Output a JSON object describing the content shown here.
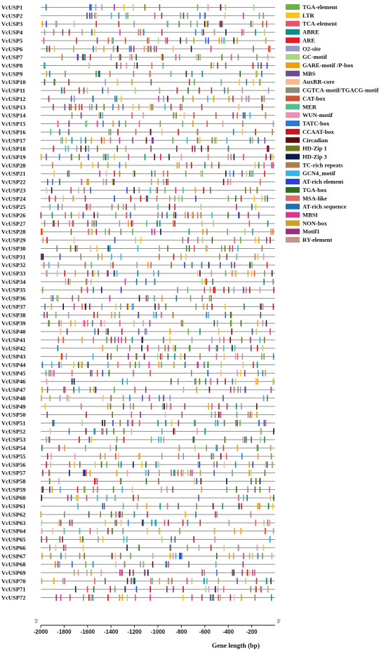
{
  "chart_data": {
    "type": "motif-map",
    "xlabel": "Gene length (bp)",
    "xlim": [
      -2000,
      0
    ],
    "x_ticks": [
      "-2000",
      "-1800",
      "-1600",
      "-1400",
      "-1200",
      "-1000",
      "-800",
      "-600",
      "-400",
      "-200"
    ],
    "five_prime_label": "5'",
    "three_prime_label": "3'",
    "genes": [
      "VcUSP1",
      "VcUSP2",
      "VcUSP3",
      "VcUSP4",
      "VcUSP5",
      "VcUSP6",
      "VcUSP7",
      "VcUSP8",
      "VcUSP9",
      "VcUSP10",
      "VcUSP11",
      "VcUSP12",
      "VcUSP13",
      "VcUSP14",
      "VcUSP15",
      "VcUSP16",
      "VcUSP17",
      "VcUSP18",
      "VcUSP19",
      "VcUSP20",
      "VcUSP21",
      "VcUSP22",
      "VcUSP23",
      "VcUSP24",
      "VcUSP25",
      "VcUSP26",
      "VcUSP27",
      "VcUSP28",
      "VcUSP29",
      "VcUSP30",
      "VcUSP31",
      "VcUSP32",
      "VcUSP33",
      "VcUSP34",
      "VcUSP35",
      "VcUSP36",
      "VcUSP37",
      "VcUSP38",
      "VcUSP39",
      "VcUSP40",
      "VcUSP41",
      "VcUSP42",
      "VcUSP43",
      "VcUSP44",
      "VcUSP45",
      "VcUSP46",
      "VcUSP47",
      "VcUSP48",
      "VcUSP49",
      "VcUSP50",
      "VcUSP51",
      "VcUSP52",
      "VcUSP53",
      "VcUSP54",
      "VcUSP55",
      "VcUSP56",
      "VcUSP57",
      "VcUSP58",
      "VcUSP59",
      "VcUSP60",
      "VcUSP61",
      "VcUSP62",
      "VcUSP63",
      "VcUSP64",
      "VcUSP65",
      "VcUSP66",
      "VcUSP67",
      "VcUSP68",
      "VcUSP69",
      "VcUSP70",
      "VcUSP71",
      "VcUSP72"
    ],
    "legend": [
      {
        "name": "TGA-element",
        "color": "#6ab04c"
      },
      {
        "name": "LTR",
        "color": "#f7c51e"
      },
      {
        "name": "TCA-element",
        "color": "#e8536b"
      },
      {
        "name": "ABRE",
        "color": "#0e8c7f"
      },
      {
        "name": "ARE",
        "color": "#e31a2c"
      },
      {
        "name": "O2-site",
        "color": "#9b97c4"
      },
      {
        "name": "GC-motif",
        "color": "#a9d67a"
      },
      {
        "name": "GARE-motif /P-box",
        "color": "#f39c12"
      },
      {
        "name": "MBS",
        "color": "#6a4c93"
      },
      {
        "name": "AuxRR-core",
        "color": "#f6b98e"
      },
      {
        "name": "CGTCA-motif/TGACG-motif",
        "color": "#8c8c73"
      },
      {
        "name": "CAT-box",
        "color": "#d35230"
      },
      {
        "name": "MER",
        "color": "#52c08a"
      },
      {
        "name": "WUN-motif",
        "color": "#f08fb0"
      },
      {
        "name": "TATC-box",
        "color": "#2a7bd1"
      },
      {
        "name": "CCAAT-box",
        "color": "#c8161d"
      },
      {
        "name": "Circadian",
        "color": "#5c0f12"
      },
      {
        "name": "HD-Zip 1",
        "color": "#6b7a1f"
      },
      {
        "name": "HD-Zip 3",
        "color": "#0d1a45"
      },
      {
        "name": "TC-rich repeats",
        "color": "#b07a4f"
      },
      {
        "name": "GCN4_motif",
        "color": "#35b5e8"
      },
      {
        "name": "AT-rich element",
        "color": "#2e3fd6"
      },
      {
        "name": "TGA-box",
        "color": "#2b6e1d"
      },
      {
        "name": "MSA-like",
        "color": "#e06a6a"
      },
      {
        "name": "AT-rich sequence",
        "color": "#1a6fb5"
      },
      {
        "name": "MBSI",
        "color": "#e0309a"
      },
      {
        "name": "NON-box",
        "color": "#c9a227"
      },
      {
        "name": "Motif1",
        "color": "#9c2f7a"
      },
      {
        "name": "RY-element",
        "color": "#c4958a"
      }
    ]
  }
}
